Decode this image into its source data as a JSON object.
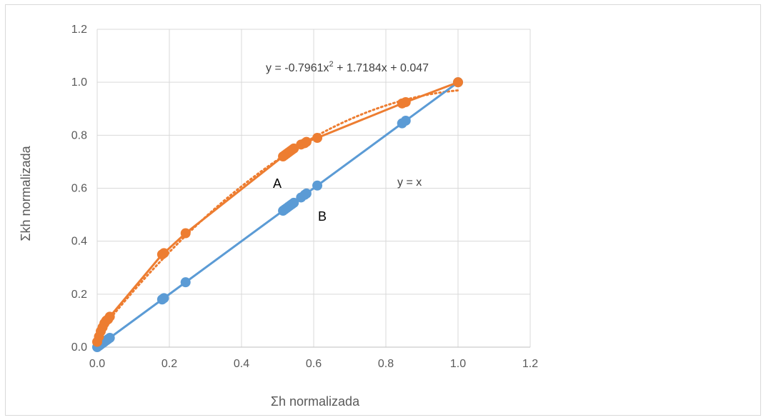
{
  "chart_data": {
    "type": "scatter",
    "title": "",
    "xlabel": "Σh normalizada",
    "ylabel": "Σkh normalizada",
    "xlim": [
      0,
      1.2
    ],
    "ylim": [
      0,
      1.2
    ],
    "xticks": [
      "0.0",
      "0.2",
      "0.4",
      "0.6",
      "0.8",
      "1.0",
      "1.2"
    ],
    "yticks": [
      "0.0",
      "0.2",
      "0.4",
      "0.6",
      "0.8",
      "1.0",
      "1.2"
    ],
    "grid": true,
    "legend": "none",
    "series": [
      {
        "color": "#5b9bd5",
        "x": [
          0.0,
          0.005,
          0.01,
          0.015,
          0.02,
          0.025,
          0.03,
          0.035,
          0.18,
          0.185,
          0.245,
          0.515,
          0.52,
          0.525,
          0.53,
          0.535,
          0.54,
          0.545,
          0.565,
          0.575,
          0.58,
          0.61,
          0.845,
          0.855,
          1.0
        ],
        "y": [
          0.0,
          0.005,
          0.01,
          0.015,
          0.02,
          0.025,
          0.03,
          0.035,
          0.18,
          0.185,
          0.245,
          0.515,
          0.52,
          0.525,
          0.53,
          0.535,
          0.54,
          0.545,
          0.565,
          0.575,
          0.58,
          0.61,
          0.845,
          0.855,
          1.0
        ]
      },
      {
        "color": "#ed7d31",
        "x": [
          0.0,
          0.005,
          0.01,
          0.015,
          0.02,
          0.025,
          0.03,
          0.035,
          0.18,
          0.185,
          0.245,
          0.515,
          0.52,
          0.525,
          0.53,
          0.535,
          0.54,
          0.545,
          0.565,
          0.575,
          0.58,
          0.61,
          0.845,
          0.855,
          1.0
        ],
        "y": [
          0.02,
          0.04,
          0.06,
          0.075,
          0.09,
          0.1,
          0.105,
          0.115,
          0.35,
          0.355,
          0.43,
          0.72,
          0.725,
          0.73,
          0.735,
          0.74,
          0.745,
          0.75,
          0.765,
          0.77,
          0.775,
          0.79,
          0.92,
          0.925,
          1.0
        ]
      }
    ],
    "trendline": {
      "color": "#ed7d31",
      "style": "dotted",
      "coefficients": [
        -0.7961,
        1.7184,
        0.047
      ],
      "equation_prefix": "y = -0.7961x",
      "equation_exponent": "2",
      "equation_suffix": " + 1.7184x + 0.047"
    },
    "annotations": {
      "identity_label": "y = x",
      "label_a": "A",
      "label_b": "B"
    }
  }
}
